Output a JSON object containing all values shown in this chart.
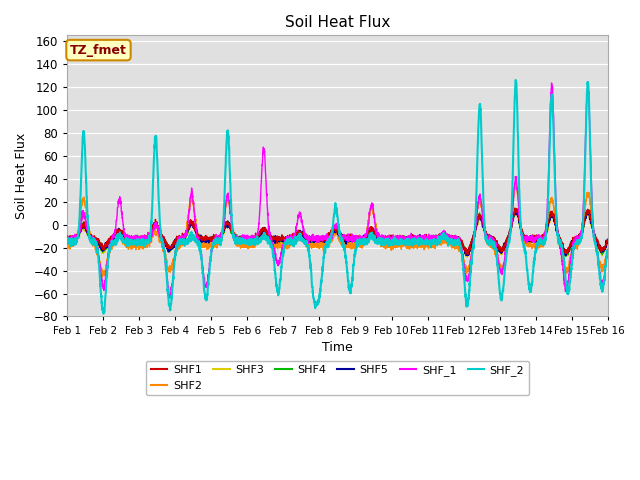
{
  "title": "Soil Heat Flux",
  "xlabel": "Time",
  "ylabel": "Soil Heat Flux",
  "ylim": [
    -80,
    165
  ],
  "yticks": [
    -80,
    -60,
    -40,
    -20,
    0,
    20,
    40,
    60,
    80,
    100,
    120,
    140,
    160
  ],
  "xtick_labels": [
    "Feb 1",
    "Feb 2",
    "Feb 3",
    "Feb 4",
    "Feb 5",
    "Feb 6",
    "Feb 7",
    "Feb 8",
    "Feb 9",
    "Feb 10",
    "Feb 11",
    "Feb 12",
    "Feb 13",
    "Feb 14",
    "Feb 15",
    "Feb 16"
  ],
  "series": {
    "SHF1": {
      "color": "#cc0000",
      "linewidth": 1.0,
      "zorder": 5
    },
    "SHF2": {
      "color": "#ff8800",
      "linewidth": 1.0,
      "zorder": 4
    },
    "SHF3": {
      "color": "#ddcc00",
      "linewidth": 1.0,
      "zorder": 3
    },
    "SHF4": {
      "color": "#00bb00",
      "linewidth": 1.0,
      "zorder": 3
    },
    "SHF5": {
      "color": "#000099",
      "linewidth": 1.2,
      "zorder": 4
    },
    "SHF_1": {
      "color": "#ff00ff",
      "linewidth": 1.0,
      "zorder": 5
    },
    "SHF_2": {
      "color": "#00cccc",
      "linewidth": 1.5,
      "zorder": 6
    }
  },
  "legend_label": "TZ_fmet",
  "legend_box_facecolor": "#ffffc0",
  "legend_box_edgecolor": "#cc8800",
  "plot_bgcolor": "#e0e0e0",
  "n_points": 3000
}
